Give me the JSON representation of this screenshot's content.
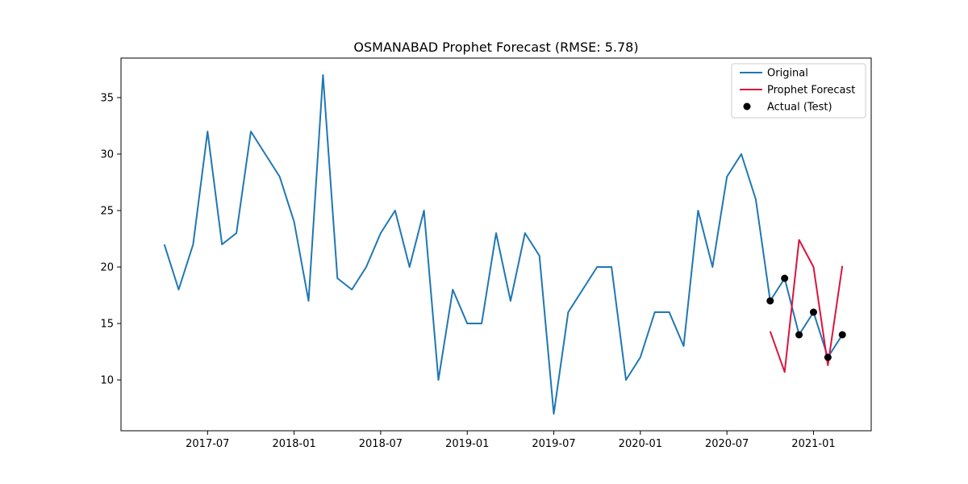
{
  "chart_data": {
    "type": "line",
    "title": "OSMANABAD Prophet Forecast (RMSE: 5.78)",
    "xlabel": "",
    "ylabel": "",
    "x_ticks": [
      "2017-07",
      "2018-01",
      "2018-07",
      "2019-01",
      "2019-07",
      "2020-01",
      "2020-07",
      "2021-01"
    ],
    "y_ticks": [
      10,
      15,
      20,
      25,
      30,
      35
    ],
    "xlim": [
      "2017-01",
      "2021-05"
    ],
    "ylim": [
      5.5,
      38.5
    ],
    "grid": false,
    "legend_position": "top-right",
    "colors": {
      "original": "#1f77b4",
      "forecast": "#dc143c",
      "actual": "#000000"
    },
    "series": [
      {
        "name": "Original",
        "kind": "line",
        "x": [
          "2017-04",
          "2017-05",
          "2017-06",
          "2017-07",
          "2017-08",
          "2017-09",
          "2017-10",
          "2017-11",
          "2017-12",
          "2018-01",
          "2018-02",
          "2018-03",
          "2018-04",
          "2018-05",
          "2018-06",
          "2018-07",
          "2018-08",
          "2018-09",
          "2018-10",
          "2018-11",
          "2018-12",
          "2019-01",
          "2019-02",
          "2019-03",
          "2019-04",
          "2019-05",
          "2019-06",
          "2019-07",
          "2019-08",
          "2019-09",
          "2019-10",
          "2019-11",
          "2019-12",
          "2020-01",
          "2020-02",
          "2020-03",
          "2020-04",
          "2020-05",
          "2020-06",
          "2020-07",
          "2020-08",
          "2020-09",
          "2020-10",
          "2020-11",
          "2020-12",
          "2021-01",
          "2021-02",
          "2021-03"
        ],
        "y": [
          22,
          18,
          22,
          32,
          22,
          23,
          32,
          30,
          28,
          24,
          17,
          37,
          19,
          18,
          20,
          23,
          25,
          20,
          25,
          10,
          18,
          15,
          15,
          23,
          17,
          23,
          21,
          7,
          16,
          18,
          20,
          20,
          10,
          12,
          16,
          16,
          13,
          25,
          20,
          28,
          30,
          26,
          17,
          19,
          14,
          16,
          12,
          14
        ]
      },
      {
        "name": "Prophet Forecast",
        "kind": "line",
        "x": [
          "2020-10",
          "2020-11",
          "2020-12",
          "2021-01",
          "2021-02",
          "2021-03"
        ],
        "y": [
          14.3,
          10.7,
          22.4,
          20.0,
          11.3,
          20.1
        ]
      },
      {
        "name": "Actual (Test)",
        "kind": "scatter",
        "x": [
          "2020-10",
          "2020-11",
          "2020-12",
          "2021-01",
          "2021-02",
          "2021-03"
        ],
        "y": [
          17,
          19,
          14,
          16,
          12,
          14
        ]
      }
    ]
  }
}
